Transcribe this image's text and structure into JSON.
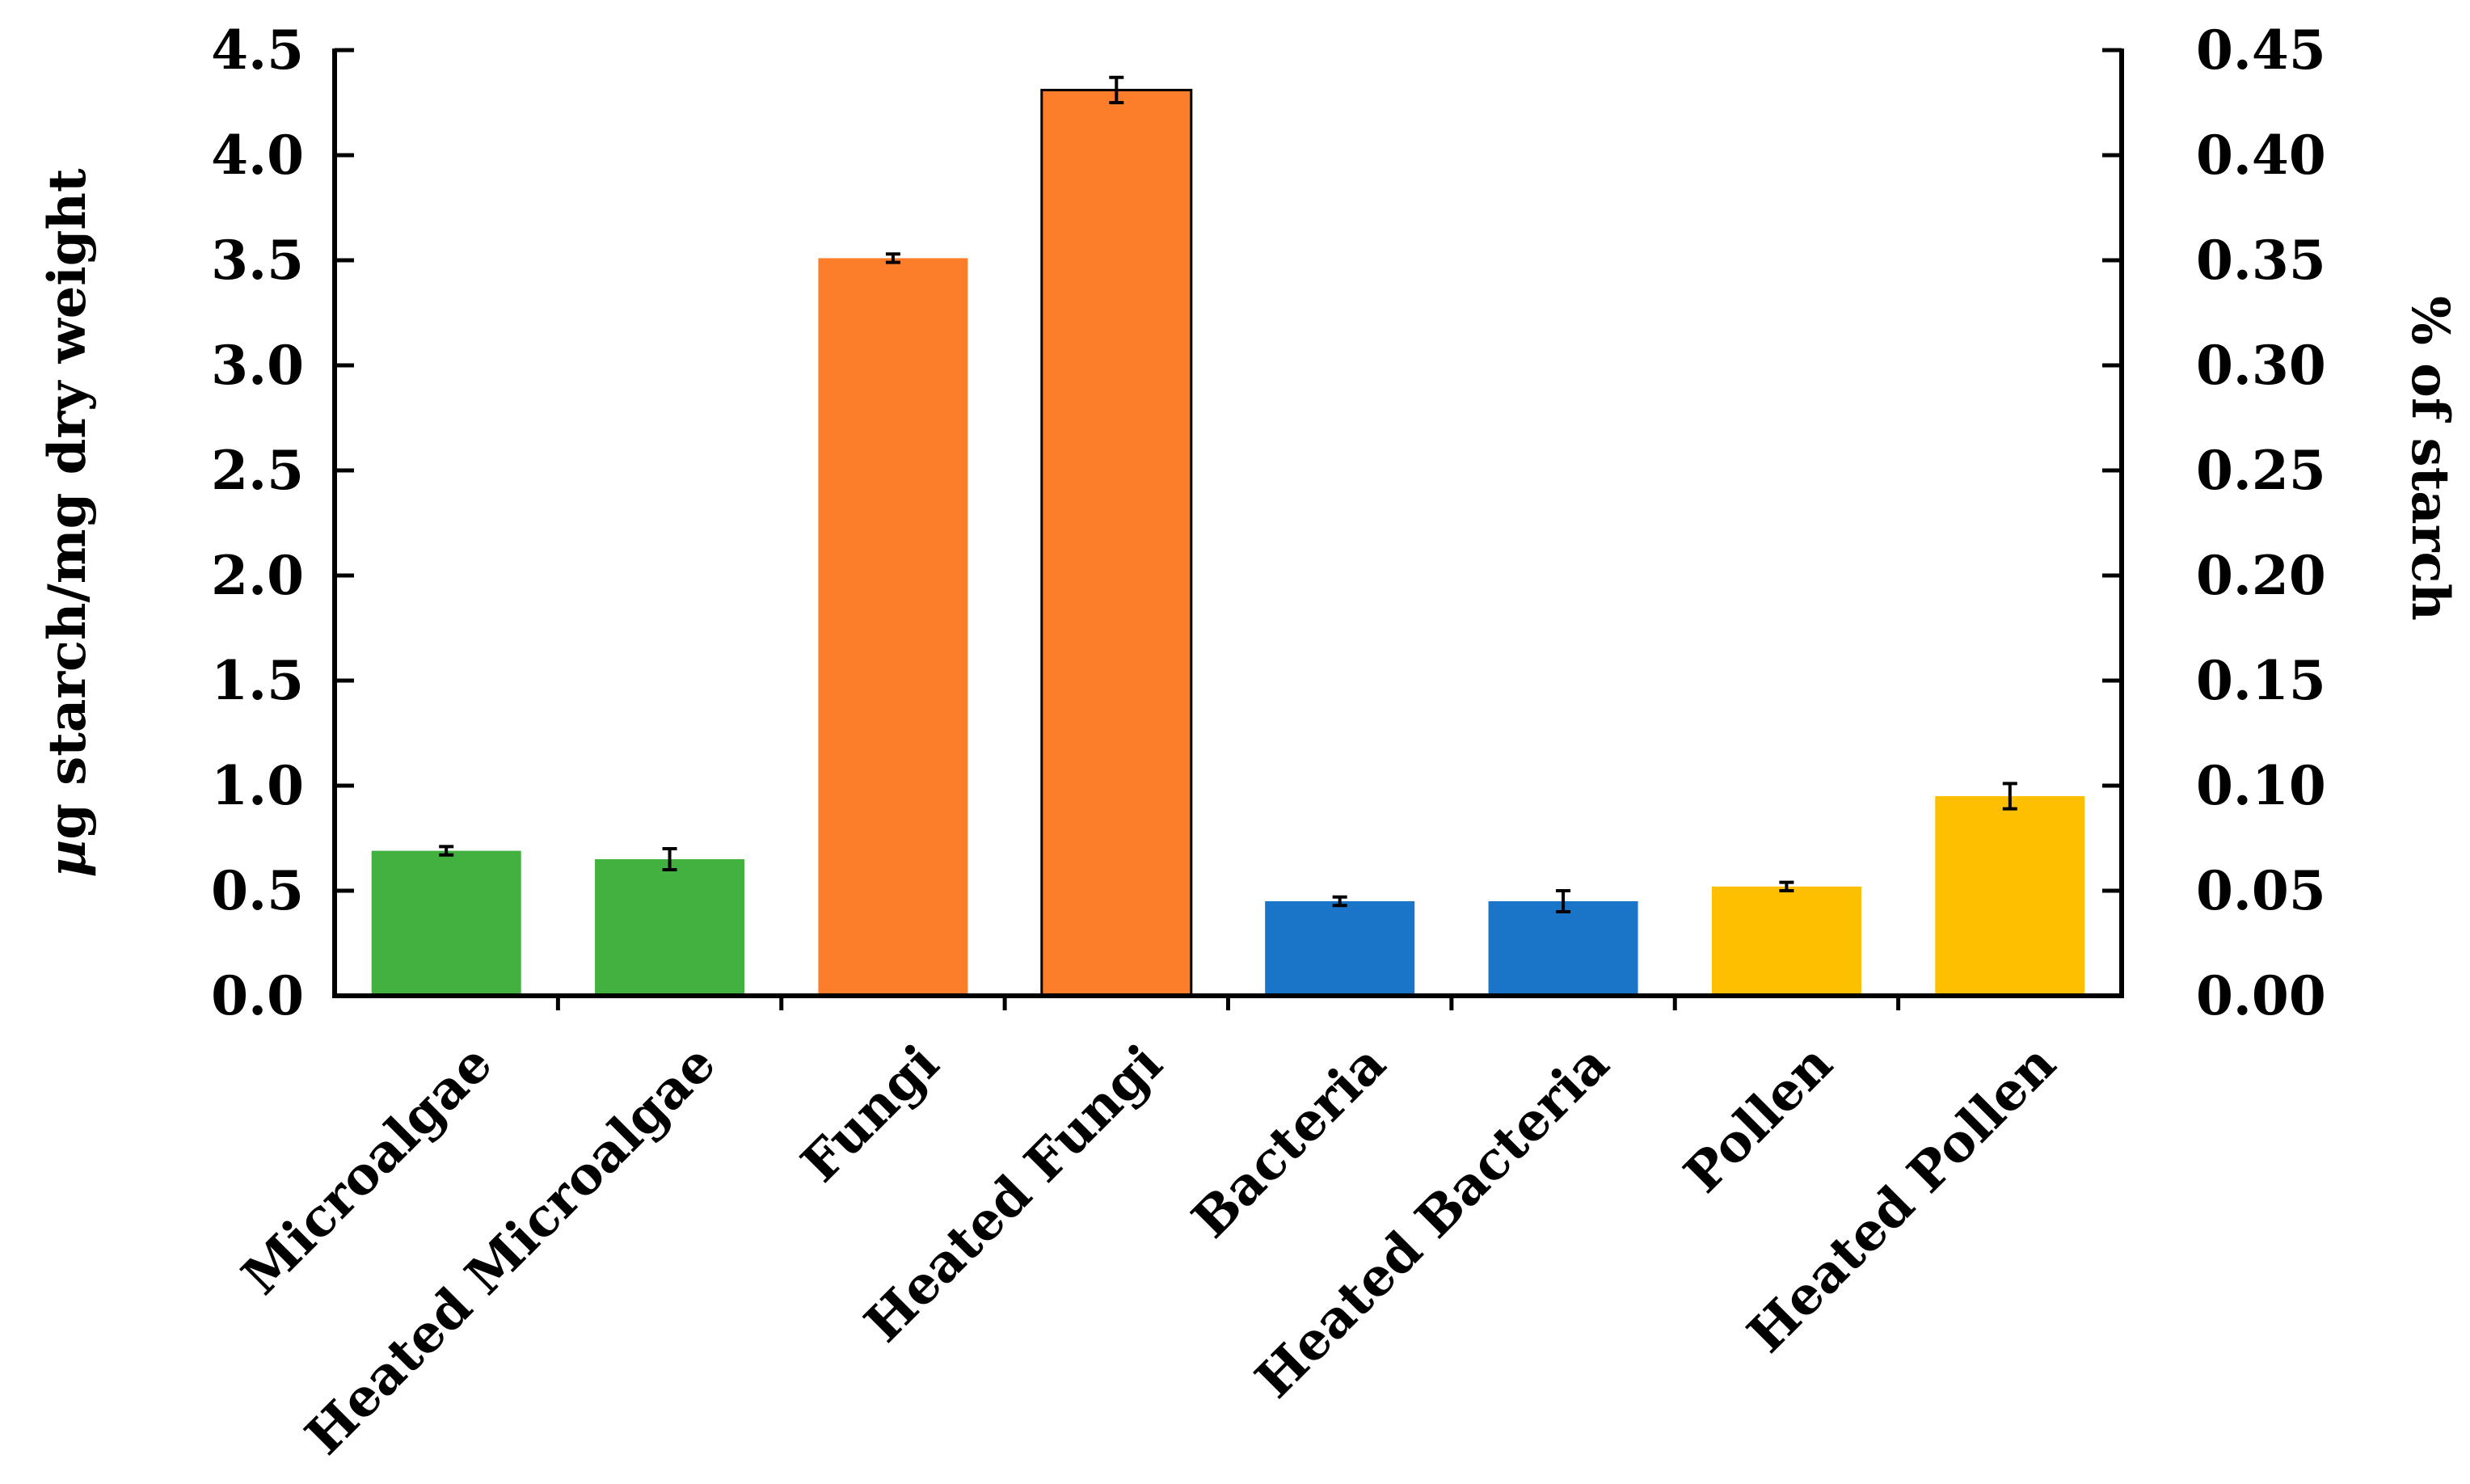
{
  "chart_data": {
    "type": "bar",
    "title": "",
    "categories": [
      "Microalgae",
      "Heated Microalgae",
      "Fungi",
      "Heated Fungi",
      "Bacteria",
      "Heated Bacteria",
      "Pollen",
      "Heated Pollen"
    ],
    "values": [
      0.69,
      0.65,
      3.51,
      4.31,
      0.45,
      0.45,
      0.52,
      0.95
    ],
    "errors": [
      0.02,
      0.05,
      0.02,
      0.06,
      0.02,
      0.05,
      0.02,
      0.06
    ],
    "colors": [
      "#43b13f",
      "#43b13f",
      "#fd7e2a",
      "#fd7e2a",
      "#1a74c8",
      "#1a74c8",
      "#fdbf00",
      "#fdbf00"
    ],
    "outlined": [
      false,
      false,
      false,
      true,
      false,
      false,
      false,
      false
    ],
    "ylabel_prefix": "µ",
    "ylabel_rest": "g starch/mg dry weight",
    "ylim": [
      0,
      4.5
    ],
    "yticks": [
      "0.0",
      "0.5",
      "1.0",
      "1.5",
      "2.0",
      "2.5",
      "3.0",
      "3.5",
      "4.0",
      "4.5"
    ],
    "y2label": "% of starch",
    "y2lim": [
      0,
      0.45
    ],
    "y2ticks": [
      "0.00",
      "0.05",
      "0.10",
      "0.15",
      "0.20",
      "0.25",
      "0.30",
      "0.35",
      "0.40",
      "0.45"
    ],
    "grid": false,
    "legend": "none"
  }
}
